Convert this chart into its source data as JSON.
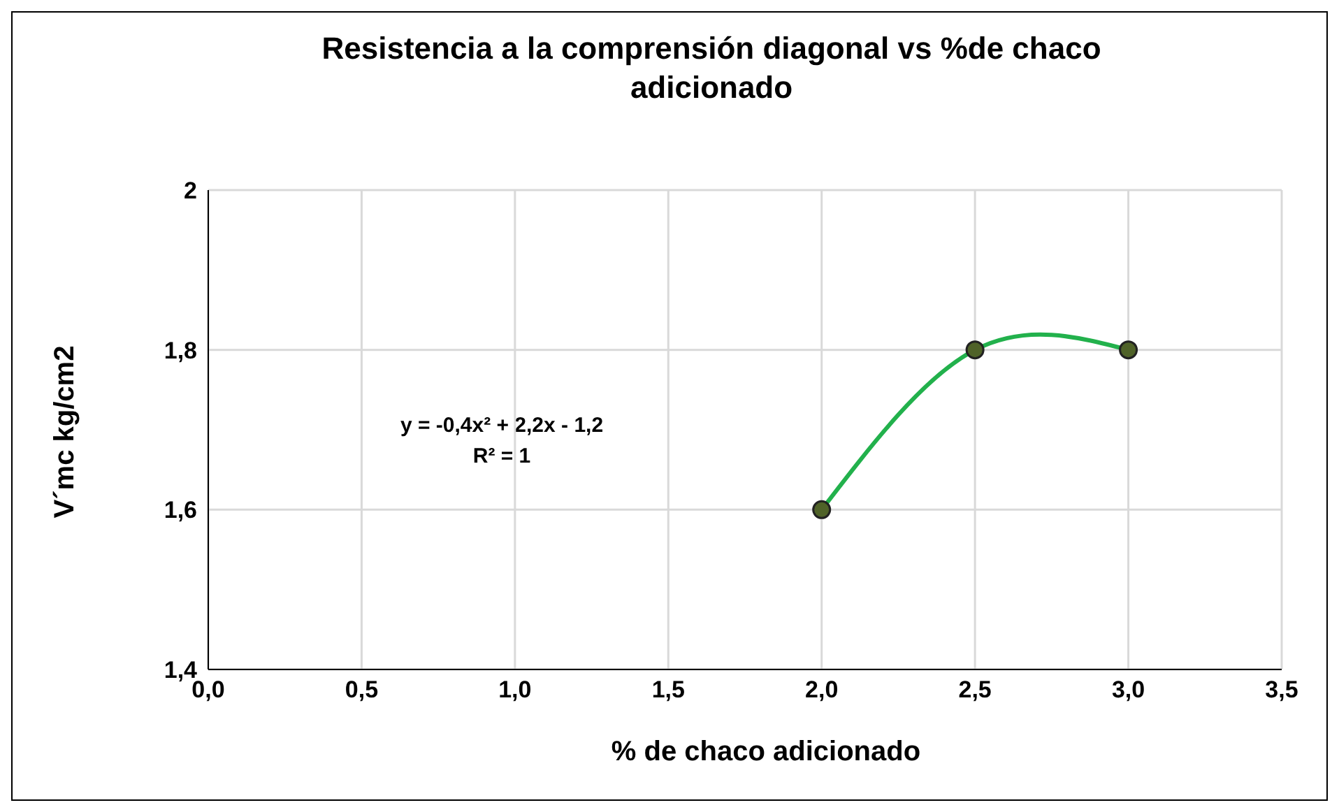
{
  "chart_data": {
    "type": "line",
    "title": "Resistencia a la comprensión diagonal vs %de  chaco adicionado",
    "xlabel": "% de chaco adicionado",
    "ylabel": "V´mc  kg/cm2",
    "x": [
      2.0,
      2.5,
      3.0
    ],
    "series": [
      {
        "color": "#22b14c",
        "values": [
          1.6,
          1.8,
          1.8
        ]
      }
    ],
    "xlim": [
      0,
      3.5
    ],
    "xticks": [
      {
        "value": 0,
        "label": "0,0"
      },
      {
        "value": 0.5,
        "label": "0,5"
      },
      {
        "value": 1,
        "label": "1,0"
      },
      {
        "value": 1.5,
        "label": "1,5"
      },
      {
        "value": 2,
        "label": "2,0"
      },
      {
        "value": 2.5,
        "label": "2,5"
      },
      {
        "value": 3,
        "label": "3,0"
      },
      {
        "value": 3.5,
        "label": "3,5"
      }
    ],
    "ylim": [
      1.4,
      2
    ],
    "yticks": [
      {
        "value": 1.4,
        "label": "1,4"
      },
      {
        "value": 1.6,
        "label": "1,6"
      },
      {
        "value": 1.8,
        "label": "1,8"
      },
      {
        "value": 2,
        "label": "2"
      }
    ],
    "annotations": [
      "y = -0,4x² + 2,2x - 1,2",
      "R² = 1"
    ],
    "grid": true,
    "marker": "circle",
    "line_style": "solid"
  }
}
